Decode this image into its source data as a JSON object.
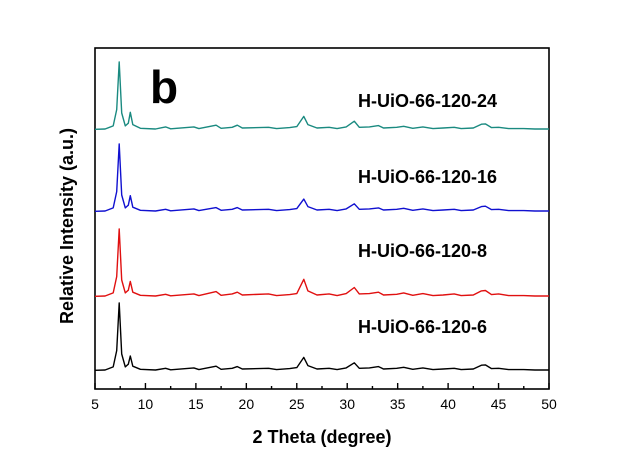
{
  "chart_data": {
    "type": "line",
    "panel_label": "b",
    "xlabel": "2 Theta (degree)",
    "ylabel": "Relative Intensity (a.u.)",
    "xlim": [
      5,
      50
    ],
    "x_ticks": [
      "5",
      "10",
      "15",
      "20",
      "25",
      "30",
      "35",
      "40",
      "45",
      "50"
    ],
    "y_ticks_labeled": false,
    "y_unit": "a.u. (relative, curves vertically stacked)",
    "series": [
      {
        "name": "H-UiO-66-120-24",
        "color": "#1a8a80",
        "stack_level": 3,
        "points": [
          [
            5,
            0.01
          ],
          [
            6,
            0.015
          ],
          [
            6.8,
            0.06
          ],
          [
            7.15,
            0.3
          ],
          [
            7.4,
            1.0
          ],
          [
            7.65,
            0.25
          ],
          [
            8.0,
            0.06
          ],
          [
            8.3,
            0.1
          ],
          [
            8.5,
            0.26
          ],
          [
            8.75,
            0.08
          ],
          [
            9.5,
            0.025
          ],
          [
            11,
            0.015
          ],
          [
            12.0,
            0.045
          ],
          [
            12.5,
            0.018
          ],
          [
            14.8,
            0.045
          ],
          [
            15.3,
            0.02
          ],
          [
            17.0,
            0.07
          ],
          [
            17.5,
            0.025
          ],
          [
            18.6,
            0.04
          ],
          [
            19.1,
            0.07
          ],
          [
            19.6,
            0.03
          ],
          [
            22.2,
            0.04
          ],
          [
            23,
            0.02
          ],
          [
            24.3,
            0.035
          ],
          [
            25.0,
            0.05
          ],
          [
            25.7,
            0.2
          ],
          [
            26.1,
            0.08
          ],
          [
            27,
            0.03
          ],
          [
            28.2,
            0.04
          ],
          [
            29,
            0.02
          ],
          [
            29.9,
            0.045
          ],
          [
            30.7,
            0.13
          ],
          [
            31.2,
            0.04
          ],
          [
            32.2,
            0.045
          ],
          [
            33.1,
            0.065
          ],
          [
            33.6,
            0.03
          ],
          [
            34.9,
            0.04
          ],
          [
            35.6,
            0.055
          ],
          [
            36.5,
            0.025
          ],
          [
            37.5,
            0.045
          ],
          [
            38.5,
            0.02
          ],
          [
            39.5,
            0.03
          ],
          [
            40.6,
            0.04
          ],
          [
            41.3,
            0.02
          ],
          [
            42.5,
            0.03
          ],
          [
            43.3,
            0.085
          ],
          [
            43.7,
            0.09
          ],
          [
            44.3,
            0.035
          ],
          [
            45.0,
            0.04
          ],
          [
            46.0,
            0.02
          ],
          [
            47.5,
            0.02
          ],
          [
            48.6,
            0.015
          ],
          [
            50,
            0.015
          ]
        ]
      },
      {
        "name": "H-UiO-66-120-16",
        "color": "#1010d0",
        "stack_level": 2,
        "points": [
          [
            5,
            0.01
          ],
          [
            6,
            0.015
          ],
          [
            6.8,
            0.06
          ],
          [
            7.15,
            0.3
          ],
          [
            7.4,
            1.0
          ],
          [
            7.65,
            0.25
          ],
          [
            8.0,
            0.06
          ],
          [
            8.3,
            0.1
          ],
          [
            8.5,
            0.24
          ],
          [
            8.75,
            0.07
          ],
          [
            9.5,
            0.025
          ],
          [
            11,
            0.015
          ],
          [
            12.0,
            0.04
          ],
          [
            12.5,
            0.018
          ],
          [
            14.8,
            0.045
          ],
          [
            15.3,
            0.02
          ],
          [
            17.0,
            0.065
          ],
          [
            17.5,
            0.025
          ],
          [
            18.6,
            0.04
          ],
          [
            19.1,
            0.065
          ],
          [
            19.6,
            0.03
          ],
          [
            22.2,
            0.04
          ],
          [
            23,
            0.02
          ],
          [
            24.3,
            0.035
          ],
          [
            25.0,
            0.05
          ],
          [
            25.7,
            0.19
          ],
          [
            26.1,
            0.08
          ],
          [
            27,
            0.03
          ],
          [
            28.2,
            0.04
          ],
          [
            29,
            0.02
          ],
          [
            29.9,
            0.045
          ],
          [
            30.7,
            0.12
          ],
          [
            31.2,
            0.04
          ],
          [
            32.2,
            0.045
          ],
          [
            33.1,
            0.06
          ],
          [
            33.6,
            0.03
          ],
          [
            34.9,
            0.04
          ],
          [
            35.6,
            0.055
          ],
          [
            36.5,
            0.025
          ],
          [
            37.5,
            0.045
          ],
          [
            38.5,
            0.02
          ],
          [
            39.5,
            0.03
          ],
          [
            40.6,
            0.04
          ],
          [
            41.3,
            0.02
          ],
          [
            42.5,
            0.03
          ],
          [
            43.3,
            0.08
          ],
          [
            43.7,
            0.085
          ],
          [
            44.3,
            0.035
          ],
          [
            45.0,
            0.04
          ],
          [
            46.0,
            0.02
          ],
          [
            47.5,
            0.02
          ],
          [
            48.6,
            0.015
          ],
          [
            50,
            0.015
          ]
        ]
      },
      {
        "name": "H-UiO-66-120-8",
        "color": "#e01010",
        "stack_level": 1,
        "points": [
          [
            5,
            0.01
          ],
          [
            6,
            0.015
          ],
          [
            6.8,
            0.06
          ],
          [
            7.15,
            0.3
          ],
          [
            7.4,
            1.0
          ],
          [
            7.65,
            0.25
          ],
          [
            8.0,
            0.06
          ],
          [
            8.3,
            0.1
          ],
          [
            8.5,
            0.23
          ],
          [
            8.75,
            0.07
          ],
          [
            9.5,
            0.025
          ],
          [
            11,
            0.015
          ],
          [
            12.0,
            0.04
          ],
          [
            12.5,
            0.018
          ],
          [
            14.8,
            0.045
          ],
          [
            15.3,
            0.02
          ],
          [
            17.0,
            0.08
          ],
          [
            17.5,
            0.025
          ],
          [
            18.6,
            0.045
          ],
          [
            19.1,
            0.07
          ],
          [
            19.6,
            0.03
          ],
          [
            22.2,
            0.045
          ],
          [
            23,
            0.02
          ],
          [
            24.3,
            0.035
          ],
          [
            25.0,
            0.05
          ],
          [
            25.7,
            0.26
          ],
          [
            26.1,
            0.09
          ],
          [
            27,
            0.03
          ],
          [
            28.2,
            0.045
          ],
          [
            29,
            0.02
          ],
          [
            29.9,
            0.05
          ],
          [
            30.7,
            0.14
          ],
          [
            31.2,
            0.045
          ],
          [
            32.2,
            0.05
          ],
          [
            33.1,
            0.07
          ],
          [
            33.6,
            0.03
          ],
          [
            34.9,
            0.04
          ],
          [
            35.6,
            0.06
          ],
          [
            36.5,
            0.025
          ],
          [
            37.5,
            0.05
          ],
          [
            38.5,
            0.02
          ],
          [
            39.5,
            0.03
          ],
          [
            40.6,
            0.045
          ],
          [
            41.3,
            0.02
          ],
          [
            42.5,
            0.03
          ],
          [
            43.3,
            0.09
          ],
          [
            43.7,
            0.095
          ],
          [
            44.3,
            0.035
          ],
          [
            45.0,
            0.045
          ],
          [
            46.0,
            0.02
          ],
          [
            47.5,
            0.02
          ],
          [
            48.6,
            0.015
          ],
          [
            50,
            0.015
          ]
        ]
      },
      {
        "name": "H-UiO-66-120-6",
        "color": "#000000",
        "stack_level": 0,
        "points": [
          [
            5,
            0.01
          ],
          [
            6,
            0.015
          ],
          [
            6.8,
            0.06
          ],
          [
            7.15,
            0.3
          ],
          [
            7.4,
            1.0
          ],
          [
            7.65,
            0.25
          ],
          [
            8.0,
            0.06
          ],
          [
            8.3,
            0.1
          ],
          [
            8.5,
            0.22
          ],
          [
            8.75,
            0.07
          ],
          [
            9.5,
            0.025
          ],
          [
            11,
            0.015
          ],
          [
            12.0,
            0.04
          ],
          [
            12.5,
            0.018
          ],
          [
            14.8,
            0.045
          ],
          [
            15.3,
            0.02
          ],
          [
            17.0,
            0.07
          ],
          [
            17.5,
            0.025
          ],
          [
            18.6,
            0.04
          ],
          [
            19.1,
            0.065
          ],
          [
            19.6,
            0.03
          ],
          [
            22.2,
            0.04
          ],
          [
            23,
            0.02
          ],
          [
            24.3,
            0.035
          ],
          [
            25.0,
            0.05
          ],
          [
            25.7,
            0.2
          ],
          [
            26.1,
            0.08
          ],
          [
            27,
            0.03
          ],
          [
            28.2,
            0.04
          ],
          [
            29,
            0.02
          ],
          [
            29.9,
            0.045
          ],
          [
            30.7,
            0.12
          ],
          [
            31.2,
            0.04
          ],
          [
            32.2,
            0.045
          ],
          [
            33.1,
            0.065
          ],
          [
            33.6,
            0.03
          ],
          [
            34.9,
            0.04
          ],
          [
            35.6,
            0.055
          ],
          [
            36.5,
            0.025
          ],
          [
            37.5,
            0.045
          ],
          [
            38.5,
            0.02
          ],
          [
            39.5,
            0.03
          ],
          [
            40.6,
            0.04
          ],
          [
            41.3,
            0.02
          ],
          [
            42.5,
            0.03
          ],
          [
            43.3,
            0.085
          ],
          [
            43.7,
            0.09
          ],
          [
            44.3,
            0.035
          ],
          [
            45.0,
            0.04
          ],
          [
            46.0,
            0.02
          ],
          [
            47.5,
            0.02
          ],
          [
            48.6,
            0.015
          ],
          [
            50,
            0.015
          ]
        ]
      }
    ]
  }
}
